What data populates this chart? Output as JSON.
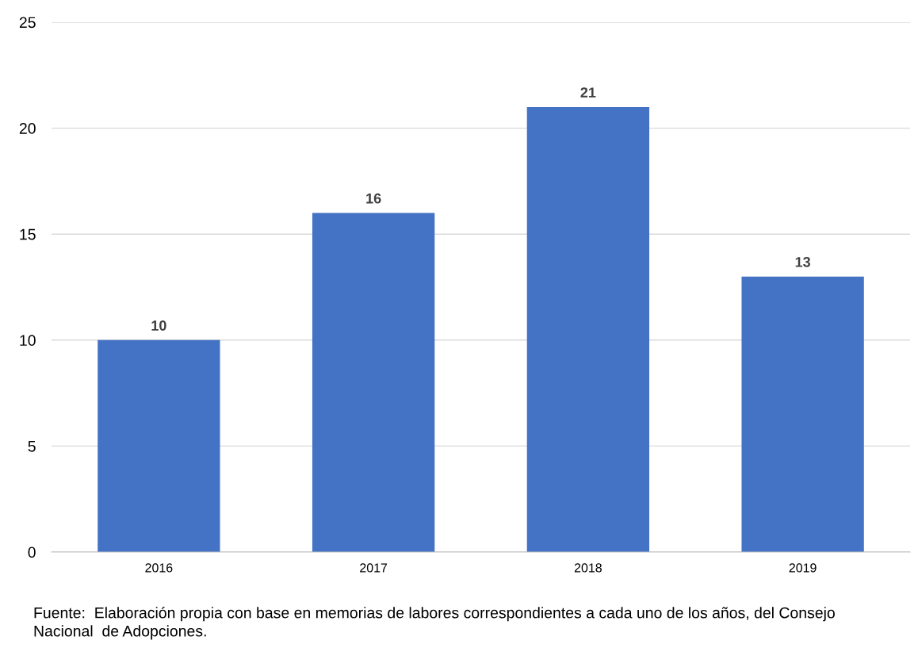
{
  "chart_data": {
    "type": "bar",
    "categories": [
      "2016",
      "2017",
      "2018",
      "2019"
    ],
    "values": [
      10,
      16,
      21,
      13
    ],
    "color": "#4472c4",
    "ylim": [
      0,
      25
    ],
    "yticks": [
      0,
      5,
      10,
      15,
      20,
      25
    ],
    "grid": "y",
    "data_labels": true,
    "legend": false,
    "annotations": [
      "Fuente:  Elaboración propia con base en memorias de labores correspondientes a cada uno de los años, del Consejo Nacional  de Adopciones."
    ]
  }
}
